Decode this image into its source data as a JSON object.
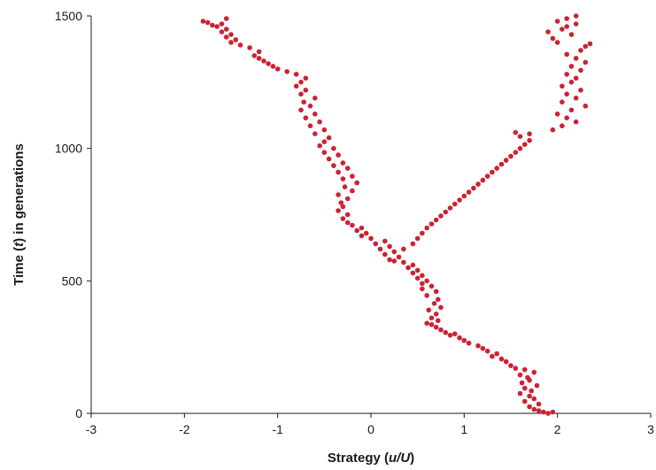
{
  "chart_data": {
    "type": "scatter",
    "title": "",
    "xlabel": {
      "prefix": "Strategy (",
      "var": "u/U",
      "suffix": ")"
    },
    "ylabel": {
      "prefix": "Time (",
      "var": "t",
      "suffix": ") in generations"
    },
    "xlim": [
      -3,
      3
    ],
    "ylim": [
      0,
      1500
    ],
    "xticks": [
      "-3",
      "-2",
      "-1",
      "0",
      "1",
      "2",
      "3"
    ],
    "yticks": [
      "0",
      "500",
      "1000",
      "1500"
    ],
    "grid": false,
    "marker_color": "#cc2233",
    "series": [
      {
        "name": "",
        "points": [
          [
            1.9,
            0
          ],
          [
            1.85,
            5
          ],
          [
            1.8,
            10
          ],
          [
            1.75,
            15
          ],
          [
            1.95,
            5
          ],
          [
            1.7,
            25
          ],
          [
            1.8,
            35
          ],
          [
            1.65,
            45
          ],
          [
            1.75,
            55
          ],
          [
            1.7,
            65
          ],
          [
            1.6,
            75
          ],
          [
            1.72,
            85
          ],
          [
            1.65,
            95
          ],
          [
            1.78,
            105
          ],
          [
            1.62,
            115
          ],
          [
            1.7,
            125
          ],
          [
            1.68,
            135
          ],
          [
            1.6,
            145
          ],
          [
            1.75,
            155
          ],
          [
            1.65,
            165
          ],
          [
            1.55,
            170
          ],
          [
            1.5,
            180
          ],
          [
            1.45,
            195
          ],
          [
            1.4,
            205
          ],
          [
            1.3,
            215
          ],
          [
            1.35,
            225
          ],
          [
            1.25,
            235
          ],
          [
            1.2,
            245
          ],
          [
            1.15,
            255
          ],
          [
            1.05,
            265
          ],
          [
            1.0,
            275
          ],
          [
            0.95,
            285
          ],
          [
            0.85,
            295
          ],
          [
            0.9,
            300
          ],
          [
            0.8,
            305
          ],
          [
            0.75,
            315
          ],
          [
            0.7,
            325
          ],
          [
            0.65,
            335
          ],
          [
            0.6,
            340
          ],
          [
            0.72,
            350
          ],
          [
            0.65,
            360
          ],
          [
            0.7,
            375
          ],
          [
            0.62,
            390
          ],
          [
            0.75,
            400
          ],
          [
            0.68,
            415
          ],
          [
            0.72,
            430
          ],
          [
            0.6,
            445
          ],
          [
            0.7,
            460
          ],
          [
            0.55,
            470
          ],
          [
            0.65,
            480
          ],
          [
            0.55,
            490
          ],
          [
            0.6,
            500
          ],
          [
            0.5,
            510
          ],
          [
            0.55,
            520
          ],
          [
            0.45,
            530
          ],
          [
            0.5,
            540
          ],
          [
            0.4,
            550
          ],
          [
            0.45,
            560
          ],
          [
            0.35,
            570
          ],
          [
            0.25,
            575
          ],
          [
            0.2,
            580
          ],
          [
            0.3,
            590
          ],
          [
            0.15,
            600
          ],
          [
            0.25,
            610
          ],
          [
            0.1,
            620
          ],
          [
            0.2,
            630
          ],
          [
            0.05,
            640
          ],
          [
            0.15,
            650
          ],
          [
            0.0,
            660
          ],
          [
            -0.1,
            670
          ],
          [
            -0.05,
            680
          ],
          [
            -0.15,
            690
          ],
          [
            -0.1,
            700
          ],
          [
            -0.2,
            710
          ],
          [
            -0.25,
            720
          ],
          [
            -0.3,
            735
          ],
          [
            -0.25,
            750
          ],
          [
            -0.35,
            765
          ],
          [
            -0.3,
            780
          ],
          [
            -0.32,
            795
          ],
          [
            -0.25,
            810
          ],
          [
            -0.35,
            825
          ],
          [
            -0.2,
            840
          ],
          [
            -0.28,
            855
          ],
          [
            -0.15,
            870
          ],
          [
            -0.3,
            885
          ],
          [
            -0.2,
            895
          ],
          [
            -0.35,
            910
          ],
          [
            -0.25,
            925
          ],
          [
            -0.4,
            935
          ],
          [
            -0.3,
            945
          ],
          [
            -0.45,
            960
          ],
          [
            -0.35,
            975
          ],
          [
            -0.5,
            985
          ],
          [
            -0.4,
            1000
          ],
          [
            -0.55,
            1010
          ],
          [
            -0.5,
            1025
          ],
          [
            -0.45,
            1040
          ],
          [
            -0.6,
            1055
          ],
          [
            -0.5,
            1070
          ],
          [
            -0.65,
            1085
          ],
          [
            -0.55,
            1100
          ],
          [
            -0.7,
            1115
          ],
          [
            -0.6,
            1130
          ],
          [
            -0.75,
            1145
          ],
          [
            -0.65,
            1160
          ],
          [
            -0.72,
            1175
          ],
          [
            -0.6,
            1190
          ],
          [
            -0.75,
            1205
          ],
          [
            -0.7,
            1220
          ],
          [
            -0.8,
            1235
          ],
          [
            -0.75,
            1250
          ],
          [
            -0.7,
            1265
          ],
          [
            -0.8,
            1280
          ],
          [
            -0.9,
            1290
          ],
          [
            -1.0,
            1300
          ],
          [
            -1.05,
            1310
          ],
          [
            -1.1,
            1320
          ],
          [
            -1.15,
            1330
          ],
          [
            -1.2,
            1340
          ],
          [
            -1.25,
            1350
          ],
          [
            -1.2,
            1365
          ],
          [
            -1.3,
            1380
          ],
          [
            -1.4,
            1390
          ],
          [
            -1.5,
            1400
          ],
          [
            -1.45,
            1410
          ],
          [
            -1.55,
            1420
          ],
          [
            -1.5,
            1430
          ],
          [
            -1.6,
            1440
          ],
          [
            -1.55,
            1450
          ],
          [
            -1.65,
            1460
          ],
          [
            -1.7,
            1465
          ],
          [
            -1.6,
            1470
          ],
          [
            -1.75,
            1475
          ],
          [
            -1.8,
            1480
          ],
          [
            -1.55,
            1490
          ],
          [
            0.35,
            620
          ],
          [
            0.45,
            640
          ],
          [
            0.5,
            660
          ],
          [
            0.55,
            680
          ],
          [
            0.6,
            700
          ],
          [
            0.65,
            715
          ],
          [
            0.7,
            730
          ],
          [
            0.75,
            745
          ],
          [
            0.8,
            760
          ],
          [
            0.85,
            775
          ],
          [
            0.9,
            790
          ],
          [
            0.95,
            805
          ],
          [
            1.0,
            820
          ],
          [
            1.05,
            835
          ],
          [
            1.1,
            850
          ],
          [
            1.15,
            865
          ],
          [
            1.2,
            880
          ],
          [
            1.25,
            895
          ],
          [
            1.3,
            910
          ],
          [
            1.35,
            925
          ],
          [
            1.4,
            940
          ],
          [
            1.45,
            955
          ],
          [
            1.5,
            970
          ],
          [
            1.55,
            985
          ],
          [
            1.6,
            1000
          ],
          [
            1.65,
            1015
          ],
          [
            1.7,
            1030
          ],
          [
            1.6,
            1045
          ],
          [
            1.55,
            1060
          ],
          [
            1.7,
            1055
          ],
          [
            1.95,
            1070
          ],
          [
            2.05,
            1085
          ],
          [
            2.2,
            1100
          ],
          [
            2.1,
            1115
          ],
          [
            2.0,
            1130
          ],
          [
            2.15,
            1145
          ],
          [
            2.3,
            1160
          ],
          [
            2.05,
            1175
          ],
          [
            2.2,
            1190
          ],
          [
            2.1,
            1205
          ],
          [
            2.25,
            1220
          ],
          [
            2.05,
            1235
          ],
          [
            2.15,
            1250
          ],
          [
            2.2,
            1265
          ],
          [
            2.1,
            1280
          ],
          [
            2.25,
            1295
          ],
          [
            2.15,
            1310
          ],
          [
            2.3,
            1325
          ],
          [
            2.2,
            1340
          ],
          [
            2.1,
            1355
          ],
          [
            2.25,
            1370
          ],
          [
            2.3,
            1385
          ],
          [
            2.0,
            1400
          ],
          [
            2.35,
            1395
          ],
          [
            1.95,
            1415
          ],
          [
            2.15,
            1430
          ],
          [
            1.9,
            1440
          ],
          [
            2.05,
            1450
          ],
          [
            2.1,
            1460
          ],
          [
            2.2,
            1470
          ],
          [
            2.0,
            1480
          ],
          [
            2.1,
            1490
          ],
          [
            2.2,
            1500
          ]
        ]
      }
    ]
  }
}
